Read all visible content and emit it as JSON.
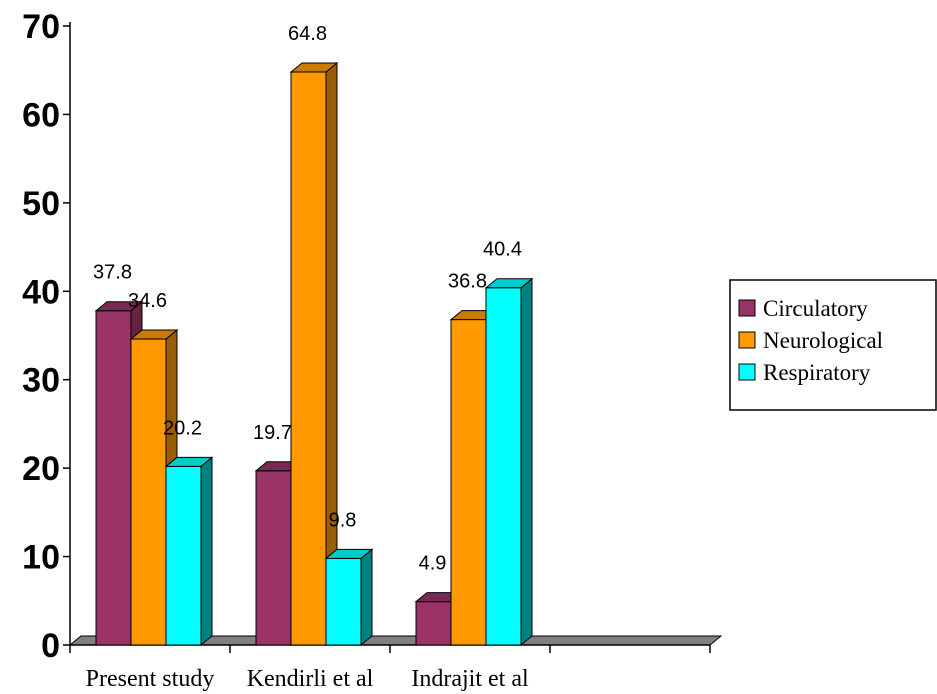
{
  "chart_data": {
    "type": "bar",
    "categories": [
      "Present study",
      "Kendirli et al",
      "Indrajit et al",
      ""
    ],
    "series": [
      {
        "name": "Circulatory",
        "values": [
          37.8,
          19.7,
          4.9,
          null
        ],
        "color": "#993366",
        "side": "#66223F",
        "top": "#7A2A52"
      },
      {
        "name": "Neurological",
        "values": [
          34.6,
          64.8,
          36.8,
          null
        ],
        "color": "#FF9900",
        "side": "#995C00",
        "top": "#CC7A00"
      },
      {
        "name": "Respiratory",
        "values": [
          20.2,
          9.8,
          40.4,
          null
        ],
        "color": "#00FFFF",
        "side": "#008080",
        "top": "#00CCCC"
      }
    ],
    "data_labels": [
      [
        "37.8",
        "19.7",
        "4.9"
      ],
      [
        "34.6",
        "64.8",
        "36.8"
      ],
      [
        "20.2",
        "9.8",
        "40.4"
      ]
    ],
    "y_ticks": [
      "0",
      "10",
      "20",
      "30",
      "40",
      "50",
      "60",
      "70"
    ],
    "ylim": [
      0,
      70
    ],
    "grid": false,
    "three_d": true,
    "legend_position": "right",
    "title": "",
    "xlabel": "",
    "ylabel": ""
  }
}
